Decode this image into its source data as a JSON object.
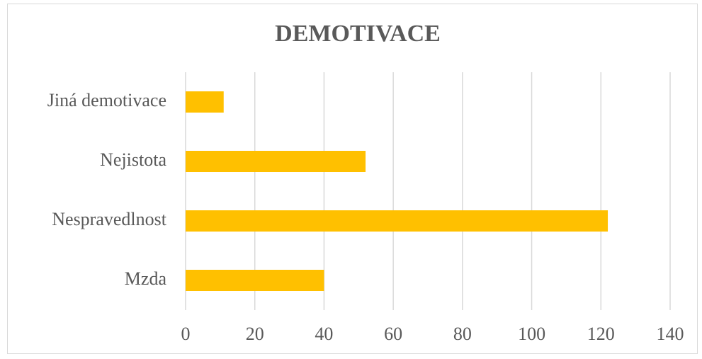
{
  "chart_data": {
    "type": "bar",
    "orientation": "horizontal",
    "title": "DEMOTIVACE",
    "categories": [
      "Mzda",
      "Nespravedlnost",
      "Nejistota",
      "Jiná demotivace"
    ],
    "values": [
      40,
      122,
      52,
      11
    ],
    "color": "#ffc000",
    "xlim": [
      0,
      140
    ],
    "xticks": [
      0,
      20,
      40,
      60,
      80,
      100,
      120,
      140
    ],
    "grid": true
  }
}
